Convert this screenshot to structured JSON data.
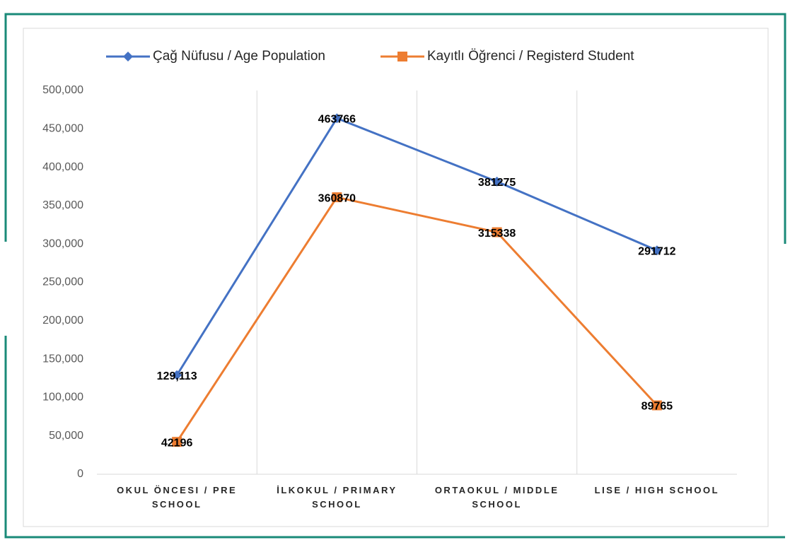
{
  "chart_data": {
    "type": "line",
    "categories": [
      "OKUL ÖNCESI / PRE SCHOOL",
      "İLKOKUL / PRIMARY SCHOOL",
      "ORTAOKUL / MIDDLE SCHOOL",
      "LISE / HIGH SCHOOL"
    ],
    "series": [
      {
        "name": "Çağ Nüfusu / Age Population",
        "color": "#4472c4",
        "marker": "diamond",
        "values": [
          129113,
          463766,
          381275,
          291712
        ],
        "value_labels": [
          "129,113",
          "463766",
          "381275",
          "291712"
        ]
      },
      {
        "name": "Kayıtlı Öğrenci / Registerd Student",
        "color": "#ed7d31",
        "marker": "square",
        "values": [
          42196,
          360870,
          315338,
          89765
        ]
      }
    ],
    "ylim": [
      0,
      500000
    ],
    "yticks": [
      0,
      {
        "value": 50000,
        "label": "50,000"
      },
      {
        "value": 100000,
        "label": "100,000"
      },
      {
        "value": 150000,
        "label": "150,000"
      },
      {
        "value": 200000,
        "label": "200,000"
      },
      {
        "value": 250000,
        "label": "250,000"
      },
      {
        "value": 300000,
        "label": "300,000"
      },
      {
        "value": 350000,
        "label": "350,000"
      },
      {
        "value": 400000,
        "label": "400,000"
      },
      {
        "value": 450000,
        "label": "450,000"
      },
      {
        "value": 500000,
        "label": "500,000"
      }
    ],
    "grid": true,
    "legend": "top"
  }
}
